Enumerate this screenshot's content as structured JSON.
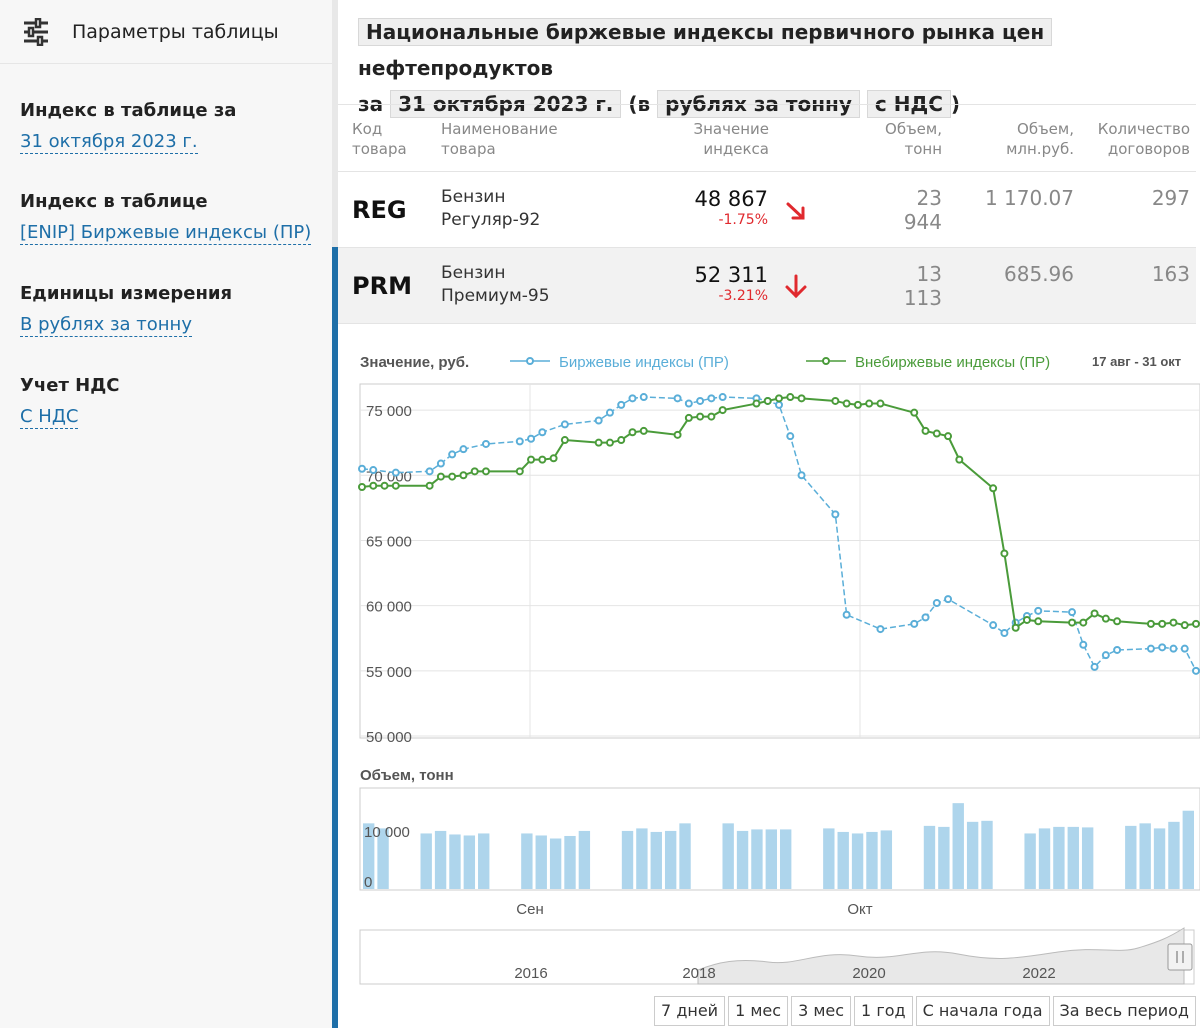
{
  "sidebar": {
    "title": "Параметры таблицы",
    "params": [
      {
        "label": "Индекс в таблице за",
        "value": "31 октября 2023 г."
      },
      {
        "label": "Индекс в таблице",
        "value": "[ENIP] Биржевые индексы (ПР)"
      },
      {
        "label": "Единицы измерения",
        "value": "В рублях за тонну"
      },
      {
        "label": "Учет НДС",
        "value": "С НДС"
      }
    ]
  },
  "header": {
    "chip_index": "Национальные биржевые индексы первичного рынка цен",
    "text_after_index": "нефтепродуктов",
    "text_za": "за",
    "chip_date": "31 октября 2023 г.",
    "text_v": "(в",
    "chip_units": "рублях за тонну",
    "chip_vat": "с НДС",
    "text_close": ")"
  },
  "table": {
    "headers": {
      "code": "Код товара",
      "name": "Наименование товара",
      "value": "Значение индекса",
      "volume_t": "Объем, тонн",
      "volume_rub": "Объем, млн.руб.",
      "contracts": "Количество договоров"
    },
    "rows": [
      {
        "code": "REG",
        "name1": "Бензин",
        "name2": "Регуляр-92",
        "value": "48 867",
        "change": "-1.75%",
        "trend": "down-right",
        "volume_t": "23 944",
        "volume_rub": "1 170.07",
        "contracts": "297"
      },
      {
        "code": "PRM",
        "name1": "Бензин",
        "name2": "Премиум-95",
        "value": "52 311",
        "change": "-3.21%",
        "trend": "down",
        "volume_t": "13 113",
        "volume_rub": "685.96",
        "contracts": "163"
      }
    ]
  },
  "chart": {
    "value_title": "Значение, руб.",
    "legend": [
      {
        "name": "Биржевые индексы (ПР)",
        "color": "#5aaed8"
      },
      {
        "name": "Внебиржевые индексы (ПР)",
        "color": "#4a9b3a"
      }
    ],
    "date_range": "17 авг - 31 окт",
    "volume_title": "Объем, тонн",
    "month_labels": [
      "Сен",
      "Окт"
    ],
    "navigator_years": [
      "2016",
      "2018",
      "2020",
      "2022"
    ],
    "range_buttons": [
      "7 дней",
      "1 мес",
      "3 мес",
      "1 год",
      "С начала года",
      "За весь период"
    ]
  },
  "chart_data": {
    "type": "line",
    "title": "Значение, руб.",
    "ylim": [
      50000,
      77000
    ],
    "y_ticks": [
      50000,
      55000,
      60000,
      65000,
      70000,
      75000
    ],
    "y_tick_labels": [
      "50 000",
      "55 000",
      "60 000",
      "65 000",
      "70 000",
      "75 000"
    ],
    "x": [
      0,
      1,
      2,
      3,
      6,
      7,
      8,
      9,
      10,
      11,
      14,
      15,
      16,
      17,
      18,
      21,
      22,
      23,
      24,
      25,
      28,
      29,
      30,
      31,
      32,
      35,
      36,
      37,
      38,
      39,
      42,
      43,
      44,
      45,
      46,
      49,
      50,
      51,
      52,
      53,
      56,
      57,
      58,
      59,
      60,
      63,
      64,
      65,
      66,
      67,
      70,
      71,
      72,
      73,
      74
    ],
    "series": [
      {
        "name": "Биржевые индексы (ПР)",
        "values": [
          70500,
          70400,
          null,
          70200,
          70300,
          70900,
          71600,
          72000,
          null,
          72400,
          72600,
          72800,
          73300,
          null,
          73900,
          74200,
          74800,
          75400,
          75900,
          76000,
          75900,
          75500,
          75700,
          75900,
          76000,
          75900,
          75700,
          75400,
          73000,
          70000,
          67000,
          59300,
          null,
          null,
          58200,
          58600,
          59100,
          60200,
          60500,
          null,
          58500,
          57900,
          58700,
          59200,
          59600,
          59500,
          57000,
          55300,
          56200,
          56600,
          56700,
          56800,
          56700,
          56700,
          55000
        ]
      },
      {
        "name": "Внебиржевые индексы (ПР)",
        "values": [
          69100,
          69200,
          69200,
          69200,
          69200,
          69900,
          69900,
          70000,
          70300,
          70300,
          70300,
          71200,
          71200,
          71300,
          72700,
          72500,
          72500,
          72700,
          73300,
          73400,
          73100,
          74400,
          74500,
          74500,
          75000,
          75500,
          75700,
          75900,
          76000,
          75900,
          75700,
          75500,
          75400,
          75500,
          75500,
          74800,
          73400,
          73200,
          73000,
          71200,
          69000,
          64000,
          58300,
          58900,
          58800,
          58700,
          58700,
          59400,
          59000,
          58800,
          58600,
          58600,
          58700,
          58500,
          58600
        ]
      }
    ]
  },
  "volume_data": {
    "type": "bar",
    "title": "Объем, тонн",
    "ylim": [
      0,
      20000
    ],
    "y_tick_labels": [
      "0",
      "10 000"
    ],
    "values": [
      13000,
      12000,
      null,
      null,
      11000,
      11500,
      10800,
      10600,
      11000,
      null,
      null,
      11000,
      10600,
      10000,
      10500,
      11500,
      null,
      null,
      11500,
      12000,
      11300,
      11500,
      13000,
      null,
      null,
      13000,
      11500,
      11800,
      11800,
      11800,
      null,
      null,
      12000,
      11300,
      11000,
      11300,
      11600,
      null,
      null,
      12500,
      12300,
      17000,
      13300,
      13500,
      null,
      null,
      11000,
      12000,
      12300,
      12300,
      12200,
      null,
      null,
      12500,
      13000,
      12000,
      13300,
      15500
    ]
  }
}
